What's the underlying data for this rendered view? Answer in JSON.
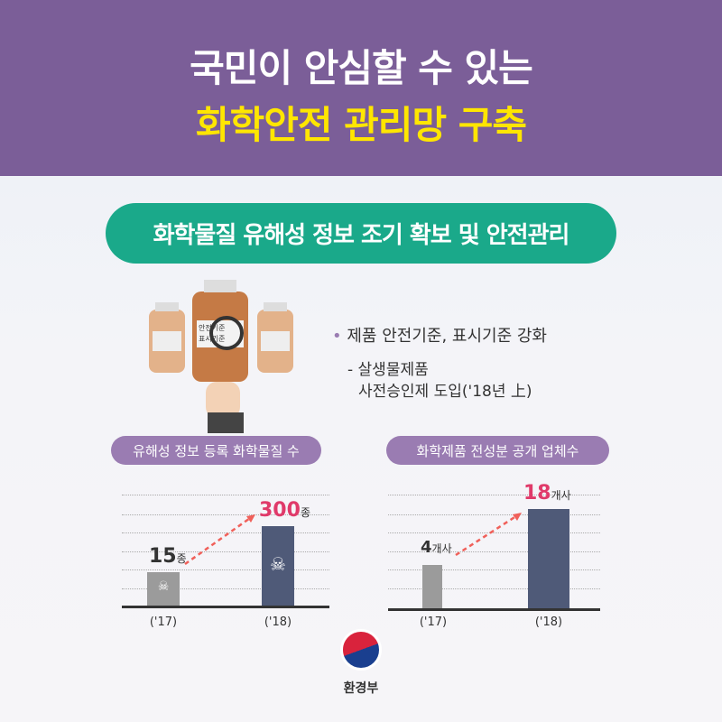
{
  "header": {
    "line1": "국민이 안심할 수 있는",
    "line2": "화학안전 관리망 구축"
  },
  "section_title": "화학물질 유해성 정보 조기 확보 및 안전관리",
  "illustration": {
    "label_line1": "안전기준",
    "label_line2": "표시기준"
  },
  "bullet": {
    "main": "제품 안전기준, 표시기준 강화",
    "sub_line1": "- 살생물제품",
    "sub_line2": "사전승인제 도입('18년 上)"
  },
  "colors": {
    "header": "#7b5e98",
    "title_highlight": "#ffe600",
    "section": "#1aa98a",
    "pill": "#9a7cb2",
    "accent": "#e03a6a"
  },
  "chart_data": [
    {
      "type": "bar",
      "title": "유해성 정보 등록 화학물질 수",
      "categories": [
        "('17)",
        "('18)"
      ],
      "values": [
        15,
        300
      ],
      "unit": "종",
      "value_labels": [
        "15",
        "300"
      ]
    },
    {
      "type": "bar",
      "title": "화학제품 전성분 공개 업체수",
      "categories": [
        "('17)",
        "('18)"
      ],
      "values": [
        4,
        18
      ],
      "unit": "개사",
      "value_labels": [
        "4",
        "18"
      ]
    }
  ],
  "footer": {
    "ministry": "환경부"
  }
}
